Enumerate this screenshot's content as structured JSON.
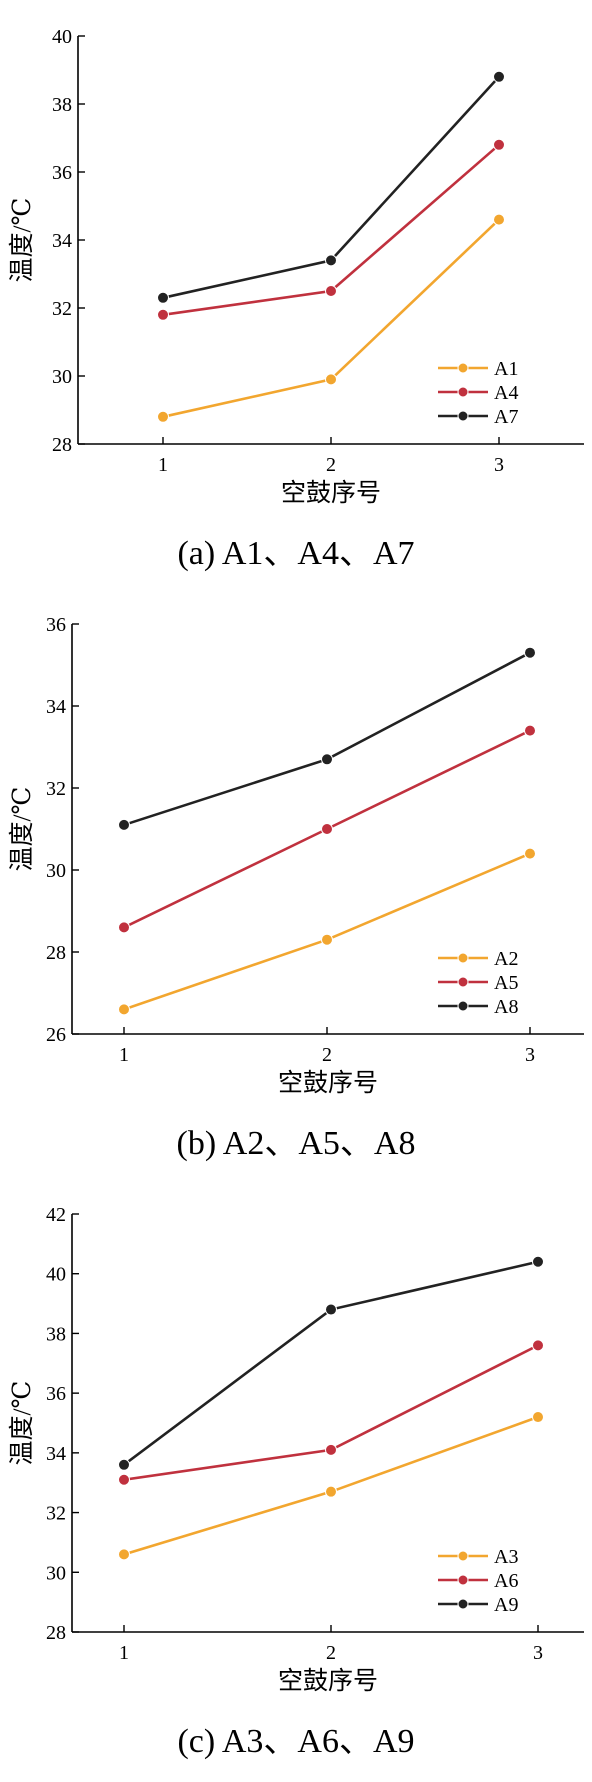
{
  "colors": {
    "orange": "#F2A62F",
    "red": "#C0313E",
    "black": "#222222"
  },
  "chart_data": [
    {
      "type": "line",
      "caption": "(a) A1、A4、A7",
      "xlabel": "空鼓序号",
      "ylabel": "温度/℃",
      "x": [
        1,
        2,
        3
      ],
      "xticks": [
        "1",
        "2",
        "3"
      ],
      "ylim": [
        28,
        40
      ],
      "yticks": [
        28,
        30,
        32,
        34,
        36,
        38,
        40
      ],
      "legend_position": "bottom-right",
      "series": [
        {
          "name": "A1",
          "color": "#F2A62F",
          "values": [
            28.8,
            29.9,
            34.6
          ]
        },
        {
          "name": "A4",
          "color": "#C0313E",
          "values": [
            31.8,
            32.5,
            36.8
          ]
        },
        {
          "name": "A7",
          "color": "#222222",
          "values": [
            32.3,
            33.4,
            38.8
          ]
        }
      ]
    },
    {
      "type": "line",
      "caption": "(b) A2、A5、A8",
      "xlabel": "空鼓序号",
      "ylabel": "温度/℃",
      "x": [
        1,
        2,
        3
      ],
      "xticks": [
        "1",
        "2",
        "3"
      ],
      "ylim": [
        26,
        36
      ],
      "yticks": [
        26,
        28,
        30,
        32,
        34,
        36
      ],
      "legend_position": "bottom-right",
      "series": [
        {
          "name": "A2",
          "color": "#F2A62F",
          "values": [
            26.6,
            28.3,
            30.4
          ]
        },
        {
          "name": "A5",
          "color": "#C0313E",
          "values": [
            28.6,
            31.0,
            33.4
          ]
        },
        {
          "name": "A8",
          "color": "#222222",
          "values": [
            31.1,
            32.7,
            35.3
          ]
        }
      ]
    },
    {
      "type": "line",
      "caption": "(c) A3、A6、A9",
      "xlabel": "空鼓序号",
      "ylabel": "温度/℃",
      "x": [
        1,
        2,
        3
      ],
      "xticks": [
        "1",
        "2",
        "3"
      ],
      "ylim": [
        28,
        42
      ],
      "yticks": [
        28,
        30,
        32,
        34,
        36,
        38,
        40,
        42
      ],
      "legend_position": "bottom-right",
      "series": [
        {
          "name": "A3",
          "color": "#F2A62F",
          "values": [
            30.6,
            32.7,
            35.2
          ]
        },
        {
          "name": "A6",
          "color": "#C0313E",
          "values": [
            33.1,
            34.1,
            37.6
          ]
        },
        {
          "name": "A9",
          "color": "#222222",
          "values": [
            33.6,
            38.8,
            40.4
          ]
        }
      ]
    }
  ]
}
